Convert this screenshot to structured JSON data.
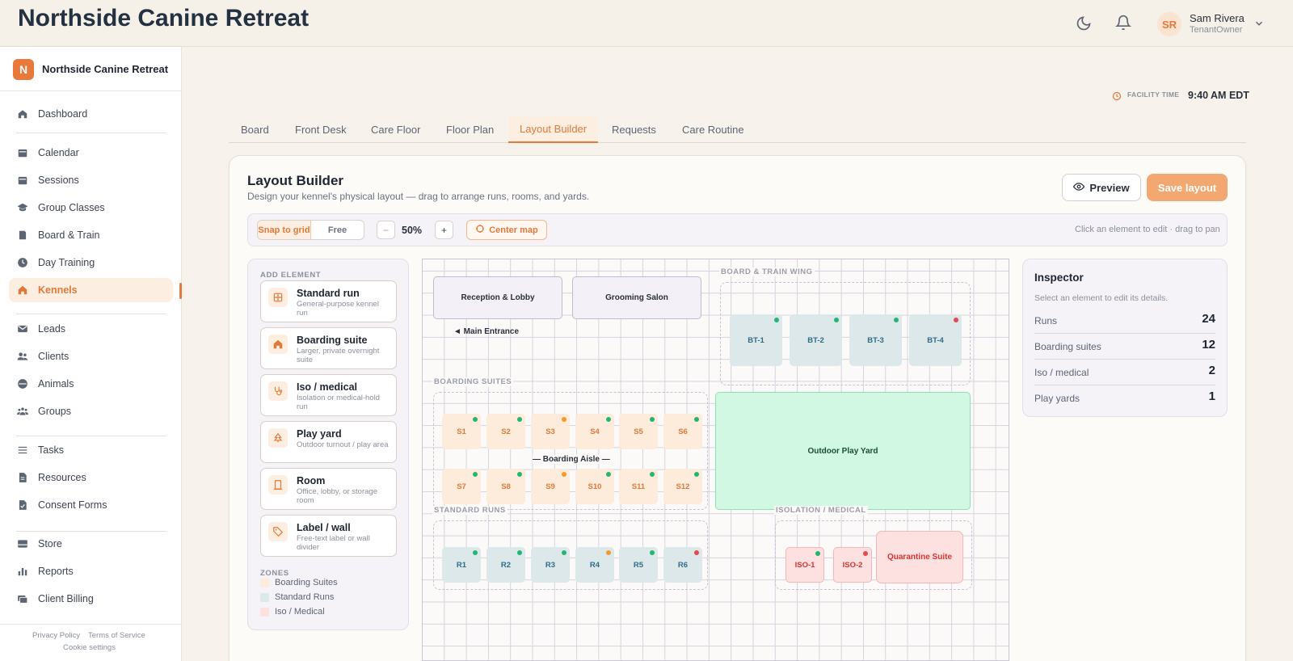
{
  "app": {
    "title": "Northside Canine Retreat"
  },
  "header": {
    "user": {
      "initials": "SR",
      "name": "Sam Rivera",
      "role": "TenantOwner"
    },
    "icons": [
      "moon-icon",
      "bell-icon",
      "chevron-down-icon"
    ]
  },
  "sidebar": {
    "brand_initial": "N",
    "brand_name": "Northside Canine Retreat",
    "items": [
      {
        "label": "Dashboard",
        "icon": "home-icon"
      },
      {
        "label": "Calendar",
        "icon": "calendar-icon"
      },
      {
        "label": "Sessions",
        "icon": "calendar-icon"
      },
      {
        "label": "Group Classes",
        "icon": "graduation-icon"
      },
      {
        "label": "Board & Train",
        "icon": "book-icon"
      },
      {
        "label": "Day Training",
        "icon": "clock-icon"
      },
      {
        "label": "Kennels",
        "icon": "house-icon",
        "active": true
      },
      {
        "label": "Leads",
        "icon": "mail-icon"
      },
      {
        "label": "Clients",
        "icon": "users-icon"
      },
      {
        "label": "Animals",
        "icon": "paw-icon"
      },
      {
        "label": "Groups",
        "icon": "group-icon"
      },
      {
        "label": "Tasks",
        "icon": "list-icon"
      },
      {
        "label": "Resources",
        "icon": "file-icon"
      },
      {
        "label": "Consent Forms",
        "icon": "file-check-icon"
      },
      {
        "label": "Store",
        "icon": "store-icon"
      },
      {
        "label": "Reports",
        "icon": "chart-icon"
      },
      {
        "label": "Client Billing",
        "icon": "billing-icon"
      }
    ],
    "footer": {
      "privacy": "Privacy Policy",
      "terms": "Terms of Service",
      "cookies": "Cookie settings"
    }
  },
  "facility": {
    "label": "FACILITY TIME",
    "time": "9:40 AM EDT"
  },
  "tabs": [
    "Board",
    "Front Desk",
    "Care Floor",
    "Floor Plan",
    "Layout Builder",
    "Requests",
    "Care Routine"
  ],
  "active_tab": "Layout Builder",
  "builder": {
    "title": "Layout Builder",
    "subtitle": "Design your kennel's physical layout — drag to arrange runs, rooms, and yards.",
    "preview_label": "Preview",
    "save_label": "Save layout",
    "toolbar": {
      "snap_label": "Snap to grid",
      "free_label": "Free",
      "zoom_out": "−",
      "zoom": "50%",
      "zoom_in": "+",
      "center_label": "Center map",
      "hint": "Click an element to edit · drag to pan"
    }
  },
  "palette": {
    "title": "ADD ELEMENT",
    "items": [
      {
        "name": "Standard run",
        "desc": "General-purpose kennel run",
        "icon": "grid-icon"
      },
      {
        "name": "Boarding suite",
        "desc": "Larger, private overnight suite",
        "icon": "house-icon"
      },
      {
        "name": "Iso / medical",
        "desc": "Isolation or medical-hold run",
        "icon": "stethoscope-icon"
      },
      {
        "name": "Play yard",
        "desc": "Outdoor turnout / play area",
        "icon": "tree-icon"
      },
      {
        "name": "Room",
        "desc": "Office, lobby, or storage room",
        "icon": "door-icon"
      },
      {
        "name": "Label / wall",
        "desc": "Free-text label or wall divider",
        "icon": "tag-icon"
      }
    ],
    "zones_title": "ZONES",
    "zones": [
      {
        "label": "Boarding Suites",
        "color": "#fdebdb"
      },
      {
        "label": "Standard Runs",
        "color": "#dce8ea"
      },
      {
        "label": "Iso / Medical",
        "color": "#fde0e0"
      }
    ]
  },
  "map": {
    "rooms": {
      "reception": "Reception & Lobby",
      "grooming": "Grooming Salon"
    },
    "entrance": "◄ Main Entrance",
    "zone_labels": {
      "board_train": "BOARD & TRAIN WING",
      "boarding": "BOARDING SUITES",
      "standard": "STANDARD RUNS",
      "isolation": "ISOLATION / MEDICAL"
    },
    "aisle": "— Boarding Aisle —",
    "play_yard": "Outdoor Play Yard",
    "quarantine": "Quarantine Suite",
    "status_colors": {
      "ok": "#22b573",
      "warn": "#f39a2b",
      "alert": "#e5484d"
    },
    "bt_units": [
      {
        "label": "BT-1",
        "status": "ok"
      },
      {
        "label": "BT-2",
        "status": "ok"
      },
      {
        "label": "BT-3",
        "status": "ok"
      },
      {
        "label": "BT-4",
        "status": "alert"
      }
    ],
    "suites_row1": [
      {
        "label": "S1",
        "status": "ok"
      },
      {
        "label": "S2",
        "status": "ok"
      },
      {
        "label": "S3",
        "status": "warn"
      },
      {
        "label": "S4",
        "status": "ok"
      },
      {
        "label": "S5",
        "status": "ok"
      },
      {
        "label": "S6",
        "status": "ok"
      }
    ],
    "suites_row2": [
      {
        "label": "S7",
        "status": "ok"
      },
      {
        "label": "S8",
        "status": "ok"
      },
      {
        "label": "S9",
        "status": "warn"
      },
      {
        "label": "S10",
        "status": "ok"
      },
      {
        "label": "S11",
        "status": "ok"
      },
      {
        "label": "S12",
        "status": "ok"
      }
    ],
    "runs": [
      {
        "label": "R1",
        "status": "ok"
      },
      {
        "label": "R2",
        "status": "ok"
      },
      {
        "label": "R3",
        "status": "ok"
      },
      {
        "label": "R4",
        "status": "warn"
      },
      {
        "label": "R5",
        "status": "ok"
      },
      {
        "label": "R6",
        "status": "alert"
      }
    ],
    "iso_units": [
      {
        "label": "ISO-1",
        "status": "ok"
      },
      {
        "label": "ISO-2",
        "status": "alert"
      }
    ]
  },
  "inspector": {
    "title": "Inspector",
    "subtitle": "Select an element to edit its details.",
    "stats": [
      {
        "label": "Runs",
        "value": "24"
      },
      {
        "label": "Boarding suites",
        "value": "12"
      },
      {
        "label": "Iso / medical",
        "value": "2"
      },
      {
        "label": "Play yards",
        "value": "1"
      }
    ]
  }
}
